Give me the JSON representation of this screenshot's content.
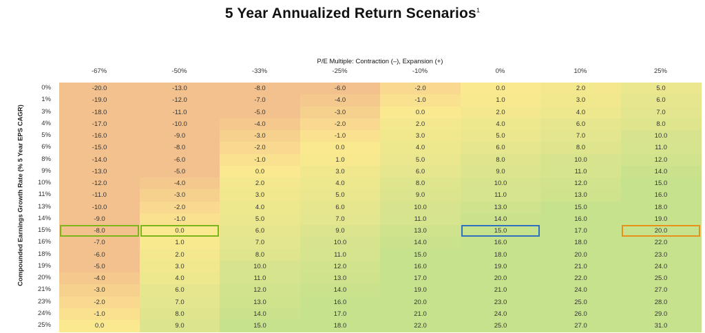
{
  "title": "5 Year Annualized Return Scenarios",
  "title_footnote": "1",
  "chart_data": {
    "type": "heatmap",
    "xlabel": "P/E Multiple: Contraction (–), Expansion (+)",
    "ylabel": "Compounded Earnings Growth Rate (% 5 Year EPS CAGR)",
    "columns": [
      "-67%",
      "-50%",
      "-33%",
      "-25%",
      "-10%",
      "0%",
      "10%",
      "25%"
    ],
    "rows": [
      "0%",
      "1%",
      "3%",
      "4%",
      "5%",
      "6%",
      "8%",
      "9%",
      "10%",
      "11%",
      "13%",
      "14%",
      "15%",
      "16%",
      "18%",
      "19%",
      "20%",
      "21%",
      "23%",
      "24%",
      "25%"
    ],
    "values": [
      [
        "-20.0",
        "-13.0",
        "-8.0",
        "-6.0",
        "-2.0",
        "0.0",
        "2.0",
        "5.0"
      ],
      [
        "-19.0",
        "-12.0",
        "-7.0",
        "-4.0",
        "-1.0",
        "1.0",
        "3.0",
        "6.0"
      ],
      [
        "-18.0",
        "-11.0",
        "-5.0",
        "-3.0",
        "0.0",
        "2.0",
        "4.0",
        "7.0"
      ],
      [
        "-17.0",
        "-10.0",
        "-4.0",
        "-2.0",
        "2.0",
        "4.0",
        "6.0",
        "8.0"
      ],
      [
        "-16.0",
        "-9.0",
        "-3.0",
        "-1.0",
        "3.0",
        "5.0",
        "7.0",
        "10.0"
      ],
      [
        "-15.0",
        "-8.0",
        "-2.0",
        "0.0",
        "4.0",
        "6.0",
        "8.0",
        "11.0"
      ],
      [
        "-14.0",
        "-6.0",
        "-1.0",
        "1.0",
        "5.0",
        "8.0",
        "10.0",
        "12.0"
      ],
      [
        "-13.0",
        "-5.0",
        "0.0",
        "3.0",
        "6.0",
        "9.0",
        "11.0",
        "14.0"
      ],
      [
        "-12.0",
        "-4.0",
        "2.0",
        "4.0",
        "8.0",
        "10.0",
        "12.0",
        "15.0"
      ],
      [
        "-11.0",
        "-3.0",
        "3.0",
        "5.0",
        "9.0",
        "11.0",
        "13.0",
        "16.0"
      ],
      [
        "-10.0",
        "-2.0",
        "4.0",
        "6.0",
        "10.0",
        "13.0",
        "15.0",
        "18.0"
      ],
      [
        "-9.0",
        "-1.0",
        "5.0",
        "7.0",
        "11.0",
        "14.0",
        "16.0",
        "19.0"
      ],
      [
        "-8.0",
        "0.0",
        "6.0",
        "9.0",
        "13.0",
        "15.0",
        "17.0",
        "20.0"
      ],
      [
        "-7.0",
        "1.0",
        "7.0",
        "10.0",
        "14.0",
        "16.0",
        "18.0",
        "22.0"
      ],
      [
        "-6.0",
        "2.0",
        "8.0",
        "11.0",
        "15.0",
        "18.0",
        "20.0",
        "23.0"
      ],
      [
        "-5.0",
        "3.0",
        "10.0",
        "12.0",
        "16.0",
        "19.0",
        "21.0",
        "24.0"
      ],
      [
        "-4.0",
        "4.0",
        "11.0",
        "13.0",
        "17.0",
        "20.0",
        "22.0",
        "25.0"
      ],
      [
        "-3.0",
        "6.0",
        "12.0",
        "14.0",
        "19.0",
        "21.0",
        "24.0",
        "27.0"
      ],
      [
        "-2.0",
        "7.0",
        "13.0",
        "16.0",
        "20.0",
        "23.0",
        "25.0",
        "28.0"
      ],
      [
        "-1.0",
        "8.0",
        "14.0",
        "17.0",
        "21.0",
        "24.0",
        "26.0",
        "29.0"
      ],
      [
        "0.0",
        "9.0",
        "15.0",
        "18.0",
        "22.0",
        "25.0",
        "27.0",
        "31.0"
      ]
    ],
    "color_scale": {
      "low": "#f3c18e",
      "mid": "#fbe98f",
      "high": "#c7e28c"
    },
    "highlights": [
      {
        "row": "15%",
        "column": "-67%",
        "color": "#7cb518"
      },
      {
        "row": "15%",
        "column": "-50%",
        "color": "#7cb518"
      },
      {
        "row": "15%",
        "column": "0%",
        "color": "#2f6fbf"
      },
      {
        "row": "15%",
        "column": "25%",
        "color": "#e8901a"
      }
    ]
  }
}
